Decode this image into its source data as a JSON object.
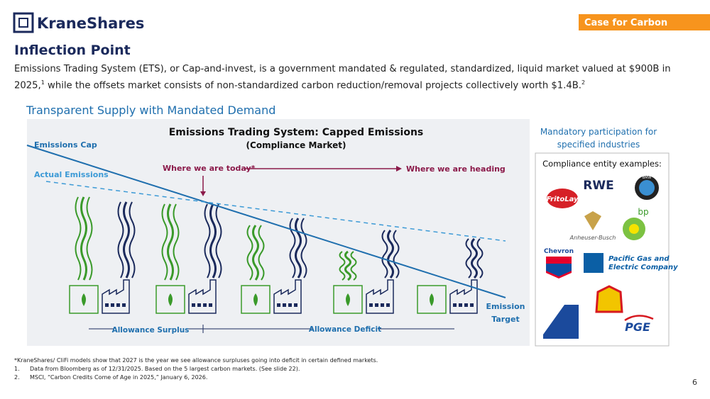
{
  "header": {
    "logo": "KraneShares",
    "tag": "Case for Carbon",
    "title": "Inflection Point",
    "intro": [
      "Emissions Trading System (ETS), or Cap-and-invest, is a government mandated & regulated, standardized, liquid market valued at $900B in 2025,",
      "1",
      " while the offsets market consists of non-standardized carbon reduction/removal projects collectively worth $1.4B.",
      "2"
    ]
  },
  "section": "Transparent Supply with Mandated Demand",
  "diagram": {
    "title": "Emissions Trading System: Capped Emissions",
    "subtitle": "(Compliance Market)",
    "cap_label": "Emissions Cap",
    "actual_label": "Actual Emissions",
    "today": "Where we are today*",
    "heading": "Where we are heading",
    "target": [
      "Emission",
      "Target"
    ],
    "surplus": "Allowance Surplus",
    "deficit": "Allowance Deficit"
  },
  "panel": {
    "heading": [
      "Mandatory participation for",
      "specified industries"
    ],
    "subheading": "Compliance entity examples:",
    "logos": [
      "RWE",
      "FritoLay",
      "BMW",
      "bp",
      "Anheuser-Busch",
      "Chevron",
      "Pacific Gas and",
      "Electric Company",
      "PGE"
    ]
  },
  "footnotes": [
    "*KraneShares/ CliFi models show that 2027 is the year we see allowance surpluses going into deficit in certain defined markets.",
    "1.",
    "Data from Bloomberg as of 12/31/2025. Based on the 5 largest carbon markets. (See slide 22).",
    "2.",
    "MSCI, “Carbon Credits Come of Age in 2025,” January 6, 2026."
  ],
  "page": "6"
}
